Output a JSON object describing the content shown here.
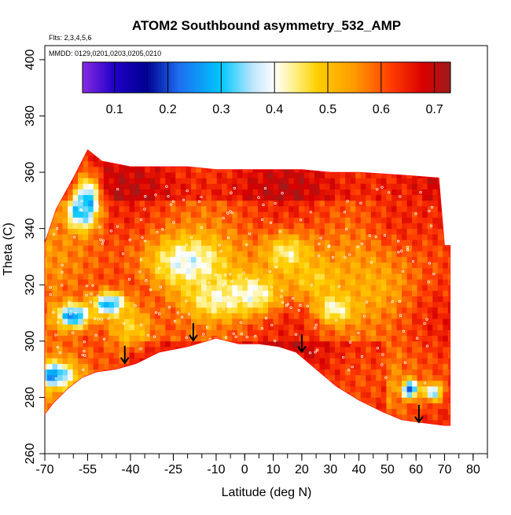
{
  "chart_data": {
    "type": "heatmap",
    "title": "ATOM2 Southbound asymmetry_532_AMP",
    "flights_label": "Flts: 2,3,4,5,6",
    "dates_label": "MMDD: 0129,0201,0203,0205,0210",
    "xlabel": "Latitude (deg N)",
    "ylabel": "Theta (C)",
    "xlim": [
      -70,
      85
    ],
    "ylim": [
      260,
      405
    ],
    "x_ticks": [
      -70,
      -55,
      -40,
      -25,
      -10,
      0,
      10,
      20,
      30,
      40,
      50,
      60,
      70,
      80
    ],
    "x_minor_step": 5,
    "y_ticks": [
      260,
      280,
      300,
      320,
      340,
      360,
      380,
      400
    ],
    "colorbar": {
      "range": [
        0.04,
        0.73
      ],
      "ticks": [
        0.1,
        0.2,
        0.3,
        0.4,
        0.5,
        0.6,
        0.7
      ],
      "stops": [
        {
          "v": 0.04,
          "color": "#8a2be2"
        },
        {
          "v": 0.1,
          "color": "#1e00c8"
        },
        {
          "v": 0.16,
          "color": "#000090"
        },
        {
          "v": 0.22,
          "color": "#1e6cf0"
        },
        {
          "v": 0.3,
          "color": "#00c8ff"
        },
        {
          "v": 0.36,
          "color": "#bfe6ff"
        },
        {
          "v": 0.4,
          "color": "#ffffff"
        },
        {
          "v": 0.44,
          "color": "#ffef80"
        },
        {
          "v": 0.48,
          "color": "#ffd000"
        },
        {
          "v": 0.55,
          "color": "#ff9a00"
        },
        {
          "v": 0.62,
          "color": "#ff3a00"
        },
        {
          "v": 0.68,
          "color": "#d80000"
        },
        {
          "v": 0.73,
          "color": "#9e1c1c"
        }
      ]
    },
    "domain_outline": [
      [
        -70,
        274
      ],
      [
        -67,
        278
      ],
      [
        -62,
        283
      ],
      [
        -57,
        287
      ],
      [
        -52,
        289
      ],
      [
        -45,
        290
      ],
      [
        -38,
        292
      ],
      [
        -30,
        296
      ],
      [
        -20,
        298
      ],
      [
        -10,
        301
      ],
      [
        -2,
        299
      ],
      [
        5,
        299
      ],
      [
        12,
        298
      ],
      [
        18,
        296
      ],
      [
        25,
        290
      ],
      [
        32,
        284
      ],
      [
        40,
        279
      ],
      [
        48,
        275
      ],
      [
        55,
        272
      ],
      [
        62,
        271
      ],
      [
        70,
        270
      ],
      [
        72,
        270
      ],
      [
        72,
        334
      ],
      [
        70,
        334
      ],
      [
        68,
        358
      ],
      [
        55,
        359
      ],
      [
        40,
        360
      ],
      [
        30,
        360
      ],
      [
        20,
        361
      ],
      [
        10,
        361
      ],
      [
        0,
        361
      ],
      [
        -10,
        361
      ],
      [
        -20,
        362
      ],
      [
        -30,
        362
      ],
      [
        -40,
        362
      ],
      [
        -50,
        364
      ],
      [
        -55,
        368
      ],
      [
        -60,
        358
      ],
      [
        -66,
        347
      ],
      [
        -70,
        335
      ]
    ],
    "field_features": [
      {
        "lat": -55,
        "theta": 350,
        "value": 0.28,
        "spread_lat": 3,
        "spread_theta": 6
      },
      {
        "lat": -58,
        "theta": 346,
        "value": 0.3,
        "spread_lat": 3,
        "spread_theta": 4
      },
      {
        "lat": -47,
        "theta": 313,
        "value": 0.22,
        "spread_lat": 4,
        "spread_theta": 3
      },
      {
        "lat": -60,
        "theta": 309,
        "value": 0.24,
        "spread_lat": 4,
        "spread_theta": 3
      },
      {
        "lat": -67,
        "theta": 288,
        "value": 0.25,
        "spread_lat": 5,
        "spread_theta": 3
      },
      {
        "lat": -20,
        "theta": 328,
        "value": 0.38,
        "spread_lat": 9,
        "spread_theta": 6
      },
      {
        "lat": -10,
        "theta": 315,
        "value": 0.42,
        "spread_lat": 8,
        "spread_theta": 5
      },
      {
        "lat": 3,
        "theta": 317,
        "value": 0.4,
        "spread_lat": 7,
        "spread_theta": 5
      },
      {
        "lat": 15,
        "theta": 331,
        "value": 0.43,
        "spread_lat": 6,
        "spread_theta": 5
      },
      {
        "lat": 32,
        "theta": 312,
        "value": 0.38,
        "spread_lat": 5,
        "spread_theta": 4
      },
      {
        "lat": 25,
        "theta": 322,
        "value": 0.48,
        "spread_lat": 7,
        "spread_theta": 5
      },
      {
        "lat": 58,
        "theta": 283,
        "value": 0.2,
        "spread_lat": 2,
        "spread_theta": 2
      },
      {
        "lat": 66,
        "theta": 282,
        "value": 0.3,
        "spread_lat": 2,
        "spread_theta": 2
      },
      {
        "lat": -40,
        "theta": 305,
        "value": 0.48,
        "spread_lat": 6,
        "spread_theta": 6
      },
      {
        "lat": 45,
        "theta": 320,
        "value": 0.52,
        "spread_lat": 8,
        "spread_theta": 8
      },
      {
        "lat": 55,
        "theta": 345,
        "value": 0.64,
        "spread_lat": 10,
        "spread_theta": 10
      }
    ],
    "tropopause_arrows": [
      {
        "lat": -42,
        "theta": 295
      },
      {
        "lat": -18,
        "theta": 303
      },
      {
        "lat": 20,
        "theta": 299
      },
      {
        "lat": 61,
        "theta": 274
      }
    ]
  }
}
